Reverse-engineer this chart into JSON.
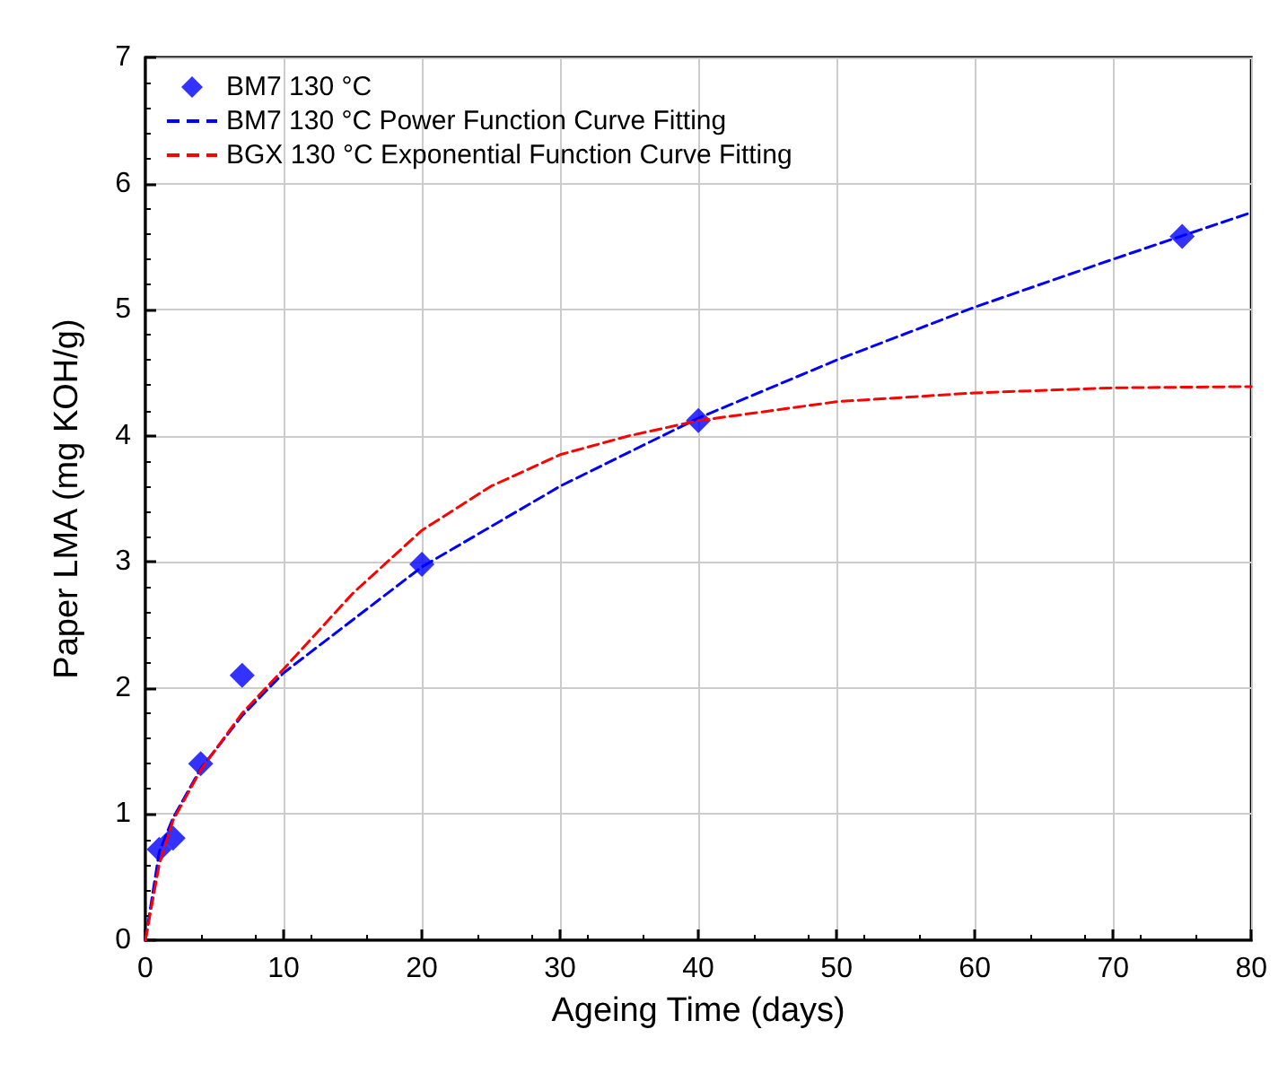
{
  "chart_data": {
    "type": "line",
    "xlabel": "Ageing Time (days)",
    "ylabel": "Paper LMA (mg KOH/g)",
    "xlim": [
      0,
      80
    ],
    "xticks": [
      0,
      10,
      20,
      30,
      40,
      50,
      60,
      70,
      80
    ],
    "ylim": [
      0,
      7
    ],
    "yticks": [
      0,
      1,
      2,
      3,
      4,
      5,
      6,
      7
    ],
    "grid": true,
    "legend": "top left",
    "series": [
      {
        "name": "BM7 130 °C",
        "type": "scatter",
        "marker": "diamond",
        "color": "#0000ff",
        "x": [
          1,
          2,
          4,
          7,
          20,
          40,
          75
        ],
        "values": [
          0.72,
          0.81,
          1.4,
          2.1,
          2.98,
          4.12,
          5.58
        ]
      },
      {
        "name": "BM7 130 °C Power Function Curve Fitting",
        "line_style": "dashed",
        "marker": "none",
        "color": "#0000ff",
        "x": [
          0,
          1,
          2,
          4,
          7,
          10,
          20,
          30,
          40,
          50,
          60,
          70,
          80
        ],
        "values": [
          0,
          0.7,
          0.97,
          1.36,
          1.78,
          2.12,
          2.96,
          3.6,
          4.14,
          4.6,
          5.02,
          5.4,
          5.77
        ]
      },
      {
        "name": "BGX 130 °C Exponential Function Curve Fitting",
        "line_style": "dashed",
        "marker": "none",
        "color": "#ff0000",
        "x": [
          0,
          1,
          2,
          4,
          7,
          10,
          15,
          20,
          25,
          30,
          35,
          40,
          50,
          60,
          70,
          80
        ],
        "values": [
          0,
          0.6,
          0.95,
          1.35,
          1.8,
          2.15,
          2.75,
          3.25,
          3.6,
          3.85,
          4.0,
          4.12,
          4.27,
          4.34,
          4.38,
          4.39
        ]
      }
    ]
  }
}
